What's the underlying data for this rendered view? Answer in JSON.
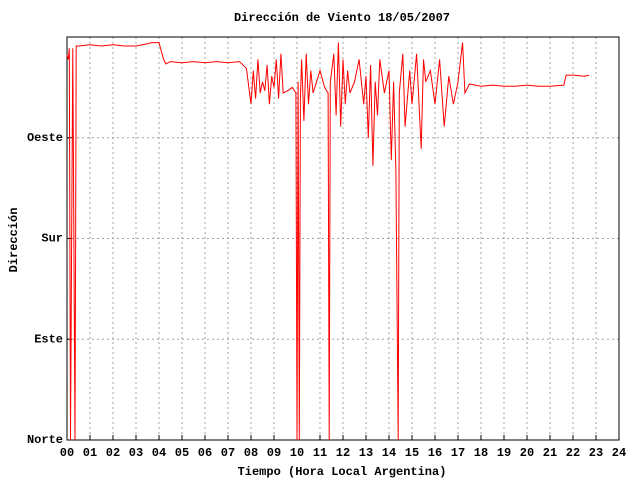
{
  "chart_data": {
    "type": "line",
    "title": "Dirección de Viento 18/05/2007",
    "xlabel": "Tiempo (Hora Local Argentina)",
    "ylabel": "Dirección",
    "color": "#ff0000",
    "grid": true,
    "xlim": [
      0,
      24
    ],
    "ylim": [
      0,
      360
    ],
    "xticks": [
      {
        "value": 0,
        "label": "00"
      },
      {
        "value": 1,
        "label": "01"
      },
      {
        "value": 2,
        "label": "02"
      },
      {
        "value": 3,
        "label": "03"
      },
      {
        "value": 4,
        "label": "04"
      },
      {
        "value": 5,
        "label": "05"
      },
      {
        "value": 6,
        "label": "06"
      },
      {
        "value": 7,
        "label": "07"
      },
      {
        "value": 8,
        "label": "08"
      },
      {
        "value": 9,
        "label": "09"
      },
      {
        "value": 10,
        "label": "10"
      },
      {
        "value": 11,
        "label": "11"
      },
      {
        "value": 12,
        "label": "12"
      },
      {
        "value": 13,
        "label": "13"
      },
      {
        "value": 14,
        "label": "14"
      },
      {
        "value": 15,
        "label": "15"
      },
      {
        "value": 16,
        "label": "16"
      },
      {
        "value": 17,
        "label": "17"
      },
      {
        "value": 18,
        "label": "18"
      },
      {
        "value": 19,
        "label": "19"
      },
      {
        "value": 20,
        "label": "20"
      },
      {
        "value": 21,
        "label": "21"
      },
      {
        "value": 22,
        "label": "22"
      },
      {
        "value": 23,
        "label": "23"
      },
      {
        "value": 24,
        "label": "24"
      }
    ],
    "yticks": [
      {
        "value": 0,
        "label": "Norte"
      },
      {
        "value": 90,
        "label": "Este"
      },
      {
        "value": 180,
        "label": "Sur"
      },
      {
        "value": 270,
        "label": "Oeste"
      }
    ],
    "x": [
      0.0,
      0.05,
      0.1,
      0.15,
      0.2,
      0.25,
      0.3,
      0.35,
      0.4,
      0.5,
      1.0,
      1.5,
      2.0,
      2.5,
      3.0,
      3.5,
      3.7,
      4.0,
      4.2,
      4.3,
      4.5,
      5.0,
      5.5,
      6.0,
      6.5,
      7.0,
      7.5,
      7.8,
      8.0,
      8.1,
      8.2,
      8.3,
      8.4,
      8.5,
      8.6,
      8.7,
      8.8,
      8.9,
      9.0,
      9.1,
      9.2,
      9.3,
      9.4,
      9.6,
      9.8,
      9.95,
      10.0,
      10.05,
      10.1,
      10.15,
      10.2,
      10.3,
      10.4,
      10.5,
      10.6,
      10.7,
      11.0,
      11.2,
      11.35,
      11.4,
      11.45,
      11.6,
      11.7,
      11.8,
      11.9,
      12.0,
      12.1,
      12.2,
      12.3,
      12.5,
      12.7,
      12.9,
      13.0,
      13.1,
      13.2,
      13.3,
      13.4,
      13.5,
      13.6,
      13.8,
      14.0,
      14.1,
      14.2,
      14.3,
      14.4,
      14.45,
      14.6,
      14.7,
      14.9,
      15.0,
      15.2,
      15.4,
      15.5,
      15.6,
      15.8,
      16.0,
      16.2,
      16.4,
      16.6,
      16.8,
      17.0,
      17.2,
      17.3,
      17.5,
      18.0,
      18.5,
      19.0,
      19.5,
      20.0,
      20.5,
      21.0,
      21.6,
      21.7,
      22.0,
      22.5,
      22.7
    ],
    "values": [
      344,
      340,
      350,
      0,
      174,
      350,
      174,
      0,
      352,
      352,
      353,
      352,
      353,
      352,
      352,
      354,
      355,
      355,
      340,
      336,
      338,
      337,
      338,
      337,
      338,
      337,
      338,
      332,
      300,
      330,
      305,
      340,
      310,
      320,
      312,
      335,
      300,
      325,
      315,
      340,
      305,
      345,
      310,
      312,
      315,
      310,
      0,
      320,
      0,
      305,
      340,
      285,
      345,
      300,
      330,
      310,
      330,
      315,
      310,
      0,
      320,
      345,
      290,
      355,
      280,
      340,
      300,
      330,
      310,
      320,
      340,
      300,
      325,
      270,
      335,
      245,
      320,
      290,
      340,
      310,
      330,
      250,
      320,
      240,
      0,
      310,
      345,
      280,
      330,
      300,
      345,
      260,
      340,
      320,
      330,
      300,
      340,
      280,
      325,
      300,
      320,
      355,
      310,
      318,
      316,
      317,
      316,
      316,
      317,
      316,
      316,
      317,
      326,
      326,
      325,
      326
    ]
  }
}
